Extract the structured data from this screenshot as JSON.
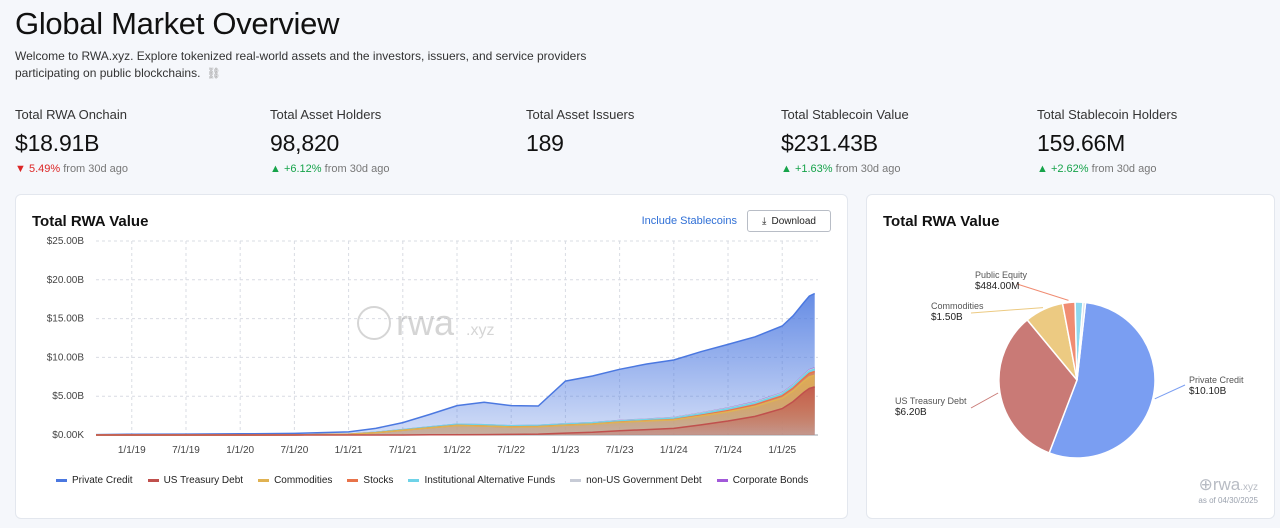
{
  "page": {
    "title": "Global Market Overview",
    "intro": "Welcome to RWA.xyz. Explore tokenized real-world assets and the investors, issuers, and service providers participating on public blockchains.",
    "intro_icon": "chain-link-icon"
  },
  "stats": [
    {
      "label": "Total RWA Onchain",
      "value": "$18.91B",
      "direction": "down",
      "change": "5.49%",
      "suffix": "from 30d ago"
    },
    {
      "label": "Total Asset Holders",
      "value": "98,820",
      "direction": "up",
      "change": "+6.12%",
      "suffix": "from 30d ago"
    },
    {
      "label": "Total Asset Issuers",
      "value": "189"
    },
    {
      "label": "Total Stablecoin Value",
      "value": "$231.43B",
      "direction": "up",
      "change": "+1.63%",
      "suffix": "from 30d ago"
    },
    {
      "label": "Total Stablecoin Holders",
      "value": "159.66M",
      "direction": "up",
      "change": "+2.62%",
      "suffix": "from 30d ago"
    }
  ],
  "area_card": {
    "title": "Total RWA Value",
    "toggle_label": "Include Stablecoins",
    "download_label": "Download",
    "watermark": "rwa",
    "watermark_suffix": ".xyz"
  },
  "pie_card": {
    "title": "Total RWA Value",
    "watermark": "rwa",
    "watermark_suffix": ".xyz",
    "as_of": "as of 04/30/2025"
  },
  "chart_data": [
    {
      "type": "area",
      "title": "Total RWA Value",
      "stacked": true,
      "ylim": [
        0,
        25
      ],
      "y_unit": "B",
      "y_ticks": [
        "$0.00K",
        "$5.00B",
        "$10.00B",
        "$15.00B",
        "$20.00B",
        "$25.00B"
      ],
      "y_tick_values": [
        0,
        5,
        10,
        15,
        20,
        25
      ],
      "x_ticks": [
        "1/1/19",
        "7/1/19",
        "1/1/20",
        "7/1/20",
        "1/1/21",
        "7/1/21",
        "1/1/22",
        "7/1/22",
        "1/1/23",
        "7/1/23",
        "1/1/24",
        "7/1/24",
        "1/1/25"
      ],
      "x_tick_values": [
        2019.0,
        2019.5,
        2020.0,
        2020.5,
        2021.0,
        2021.5,
        2022.0,
        2022.5,
        2023.0,
        2023.5,
        2024.0,
        2024.5,
        2025.0
      ],
      "xlim": [
        2018.67,
        2025.33
      ],
      "grid": true,
      "legend_position": "bottom",
      "x": [
        2018.67,
        2019.0,
        2019.5,
        2020.0,
        2020.5,
        2021.0,
        2021.25,
        2021.5,
        2021.75,
        2022.0,
        2022.25,
        2022.5,
        2022.75,
        2023.0,
        2023.25,
        2023.5,
        2023.75,
        2024.0,
        2024.25,
        2024.5,
        2024.75,
        2025.0,
        2025.1,
        2025.2,
        2025.25,
        2025.3
      ],
      "series": [
        {
          "name": "Private Credit",
          "color": "#4b78e0",
          "values": [
            0.05,
            0.1,
            0.12,
            0.15,
            0.2,
            0.3,
            0.5,
            0.9,
            1.6,
            2.4,
            2.9,
            2.6,
            2.5,
            5.5,
            6.0,
            6.6,
            7.1,
            7.4,
            7.9,
            8.2,
            8.4,
            8.6,
            8.9,
            9.3,
            9.5,
            9.6
          ]
        },
        {
          "name": "US Treasury Debt",
          "color": "#c0504d",
          "values": [
            0.0,
            0.0,
            0.0,
            0.0,
            0.0,
            0.0,
            0.0,
            0.0,
            0.02,
            0.03,
            0.05,
            0.08,
            0.12,
            0.25,
            0.35,
            0.55,
            0.7,
            0.85,
            1.3,
            1.8,
            2.4,
            3.4,
            4.3,
            5.5,
            6.0,
            6.2
          ]
        },
        {
          "name": "Commodities",
          "color": "#e0b252",
          "values": [
            0.0,
            0.0,
            0.0,
            0.0,
            0.01,
            0.1,
            0.3,
            0.6,
            0.9,
            1.2,
            1.1,
            0.95,
            0.95,
            1.0,
            1.05,
            1.1,
            1.1,
            1.1,
            1.15,
            1.2,
            1.3,
            1.35,
            1.4,
            1.45,
            1.5,
            1.5
          ]
        },
        {
          "name": "Stocks",
          "color": "#e8734a",
          "values": [
            0.0,
            0.0,
            0.0,
            0.0,
            0.0,
            0.0,
            0.0,
            0.0,
            0.01,
            0.01,
            0.01,
            0.01,
            0.02,
            0.02,
            0.02,
            0.02,
            0.03,
            0.05,
            0.1,
            0.15,
            0.2,
            0.3,
            0.35,
            0.4,
            0.45,
            0.48
          ]
        },
        {
          "name": "Institutional Alternative Funds",
          "color": "#6fd3e8",
          "values": [
            0.0,
            0.0,
            0.0,
            0.0,
            0.0,
            0.0,
            0.05,
            0.1,
            0.12,
            0.15,
            0.15,
            0.15,
            0.15,
            0.15,
            0.15,
            0.15,
            0.16,
            0.18,
            0.2,
            0.22,
            0.24,
            0.25,
            0.27,
            0.28,
            0.3,
            0.3
          ]
        },
        {
          "name": "non-US Government Debt",
          "color": "#c7cbd6",
          "values": [
            0.0,
            0.0,
            0.0,
            0.0,
            0.0,
            0.0,
            0.0,
            0.0,
            0.0,
            0.0,
            0.0,
            0.0,
            0.0,
            0.02,
            0.03,
            0.04,
            0.05,
            0.06,
            0.07,
            0.08,
            0.09,
            0.1,
            0.1,
            0.1,
            0.1,
            0.1
          ]
        },
        {
          "name": "Corporate Bonds",
          "color": "#a259d9",
          "values": [
            0.0,
            0.0,
            0.0,
            0.0,
            0.0,
            0.0,
            0.0,
            0.0,
            0.0,
            0.0,
            0.0,
            0.0,
            0.0,
            0.0,
            0.0,
            0.01,
            0.01,
            0.02,
            0.02,
            0.03,
            0.03,
            0.04,
            0.04,
            0.04,
            0.05,
            0.05
          ]
        }
      ]
    },
    {
      "type": "pie",
      "title": "Total RWA Value",
      "slices": [
        {
          "name": "Private Credit",
          "value": 10.1,
          "label": "$10.10B",
          "color": "#7a9ef2"
        },
        {
          "name": "US Treasury Debt",
          "value": 6.2,
          "label": "$6.20B",
          "color": "#c97a76"
        },
        {
          "name": "Commodities",
          "value": 1.5,
          "label": "$1.50B",
          "color": "#ecca82"
        },
        {
          "name": "Public Equity",
          "value": 0.484,
          "label": "$484.00M",
          "color": "#f08c72"
        },
        {
          "name": "",
          "value": 0.3,
          "color": "#8ed8ee"
        },
        {
          "name": "",
          "value": 0.1,
          "color": "#d7dbe4"
        }
      ],
      "callouts": [
        {
          "name": "Private Credit",
          "label": "$10.10B"
        },
        {
          "name": "US Treasury Debt",
          "label": "$6.20B"
        },
        {
          "name": "Commodities",
          "label": "$1.50B"
        },
        {
          "name": "Public Equity",
          "label": "$484.00M"
        }
      ]
    }
  ]
}
